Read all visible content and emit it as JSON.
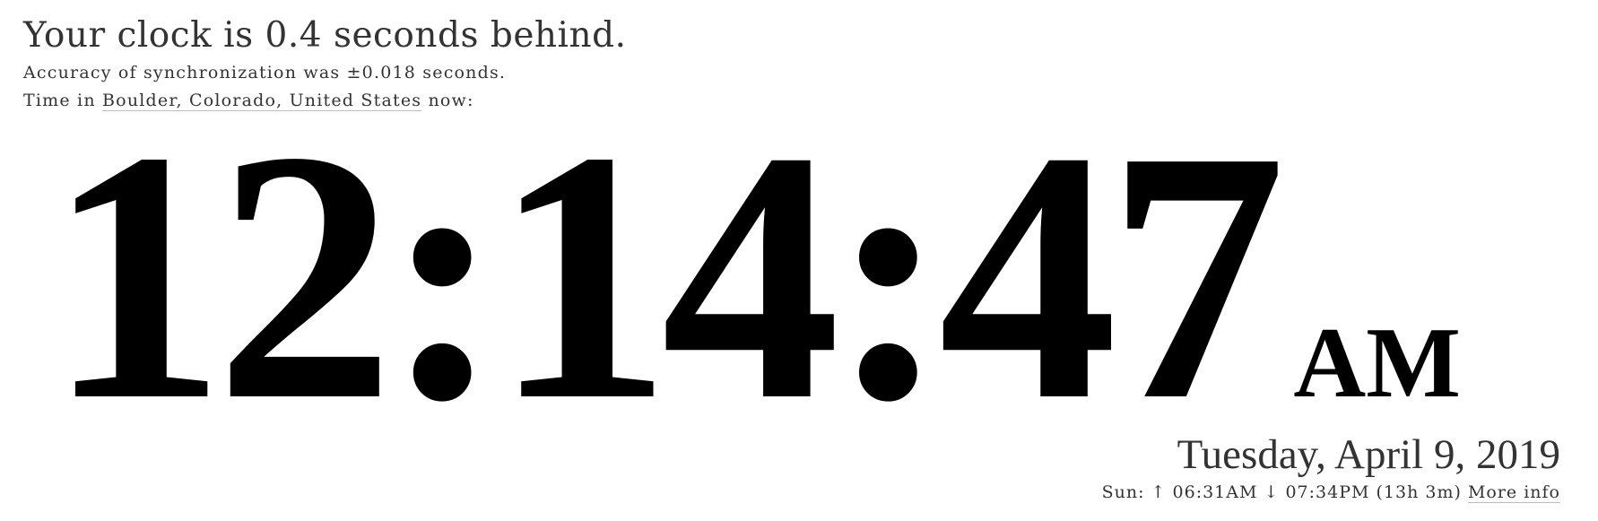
{
  "header": {
    "headline": "Your clock is 0.4 seconds behind.",
    "accuracy": "Accuracy of synchronization was ±0.018 seconds.",
    "location_prefix": "Time in",
    "location_link": "Boulder, Colorado, United States",
    "location_suffix": "now:"
  },
  "clock": {
    "time": "12:14:47",
    "ampm": "AM"
  },
  "date": {
    "text": "Tuesday, April 9, 2019"
  },
  "sun": {
    "label": "Sun:",
    "sunrise_icon": "↑",
    "sunrise": "06:31AM",
    "sunset_icon": "↓",
    "sunset": "07:34PM",
    "daylength": "(13h 3m)",
    "more_info": "More info"
  }
}
